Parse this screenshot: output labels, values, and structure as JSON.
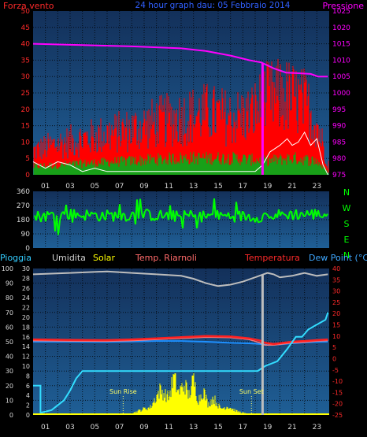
{
  "colors": {
    "background": "#000000",
    "panel_top": "#13305a",
    "panel_bottom": "#1f5f96",
    "grid": "#000000",
    "tick_white": "#d8d8d8",
    "wind_gust": "#ff0000",
    "wind_avg": "#18a018",
    "wind_white": "#ffffff",
    "pressure": "#ff00ff",
    "direction": "#00ff00",
    "humidity": "#bdbdbd",
    "solar": "#ffff00",
    "sun_marker": "#ffff66",
    "temperature": "#ff2020",
    "windchill": "#ff7777",
    "dewpoint": "#1e90ff",
    "rain": "#33ddff",
    "right_axis_red": "#ff2a2a",
    "left_axis_red": "#ff2a2a",
    "left_axis_blue": "#3fb6ff"
  },
  "chart_data": [
    {
      "type": "line",
      "title": "24 hour graph dau: 05 Febbraio 2014",
      "left_label": "Forza vento",
      "right_label": "Pressione",
      "y_left": {
        "min": 0,
        "max": 50,
        "ticks": [
          0,
          5,
          10,
          15,
          20,
          25,
          30,
          35,
          40,
          45,
          50
        ]
      },
      "y_right": {
        "min": 975,
        "max": 1025,
        "ticks": [
          975,
          980,
          985,
          990,
          995,
          1000,
          1005,
          1010,
          1015,
          1020,
          1025
        ]
      },
      "x_ticks": [
        "01",
        "03",
        "05",
        "07",
        "09",
        "11",
        "13",
        "15",
        "17",
        "19",
        "21",
        "23"
      ],
      "x_range_hours": [
        0,
        24
      ],
      "current_time_hour": 18.6,
      "series": [
        {
          "name": "Pressione",
          "axis": "right",
          "points": [
            [
              0,
              1015
            ],
            [
              4,
              1014.6
            ],
            [
              8,
              1014.2
            ],
            [
              12,
              1013.6
            ],
            [
              14,
              1012.8
            ],
            [
              16,
              1011.4
            ],
            [
              17.5,
              1010
            ],
            [
              18.5,
              1009.3
            ],
            [
              19.5,
              1007.5
            ],
            [
              20.5,
              1006.2
            ],
            [
              21.5,
              1006
            ],
            [
              22.5,
              1005.8
            ],
            [
              23.1,
              1005
            ],
            [
              23.9,
              1005
            ]
          ]
        },
        {
          "name": "gust-envelope",
          "points": [
            [
              0,
              10
            ],
            [
              2,
              13
            ],
            [
              4,
              15
            ],
            [
              6,
              17
            ],
            [
              8,
              19
            ],
            [
              10,
              22
            ],
            [
              12,
              24
            ],
            [
              14,
              26
            ],
            [
              16,
              24
            ],
            [
              17.5,
              25
            ],
            [
              19,
              32
            ],
            [
              20.5,
              33
            ],
            [
              22,
              30
            ],
            [
              23,
              22
            ],
            [
              23.9,
              5
            ]
          ]
        },
        {
          "name": "average-envelope",
          "points": [
            [
              0,
              3
            ],
            [
              4,
              4
            ],
            [
              8,
              5
            ],
            [
              12,
              6
            ],
            [
              16,
              6
            ],
            [
              19,
              5
            ],
            [
              21,
              6
            ],
            [
              23,
              5
            ],
            [
              23.9,
              1
            ]
          ]
        },
        {
          "name": "lull",
          "points": [
            [
              0,
              4
            ],
            [
              1,
              2
            ],
            [
              2,
              4
            ],
            [
              3,
              3
            ],
            [
              4,
              1
            ],
            [
              5,
              2
            ],
            [
              6,
              1
            ],
            [
              8,
              1
            ],
            [
              12,
              1
            ],
            [
              16,
              1
            ],
            [
              18,
              1
            ],
            [
              18.6,
              3
            ],
            [
              19.2,
              7
            ],
            [
              20,
              9
            ],
            [
              20.6,
              11
            ],
            [
              21,
              9
            ],
            [
              21.5,
              10
            ],
            [
              22,
              13
            ],
            [
              22.5,
              9
            ],
            [
              23,
              11
            ],
            [
              23.5,
              3
            ],
            [
              23.9,
              0
            ]
          ]
        }
      ]
    },
    {
      "type": "scatter",
      "y_left": {
        "min": 0,
        "max": 360,
        "ticks": [
          0,
          90,
          180,
          270,
          360
        ]
      },
      "y_right_labels": [
        "N",
        "W",
        "S",
        "E",
        "N"
      ],
      "x_range_hours": [
        0,
        24
      ],
      "series": [
        {
          "name": "direction-centre",
          "points": [
            [
              0,
              200
            ],
            [
              3,
              215
            ],
            [
              6,
              205
            ],
            [
              9,
              210
            ],
            [
              12,
              200
            ],
            [
              15,
              205
            ],
            [
              18,
              200
            ],
            [
              21,
              215
            ],
            [
              23.9,
              215
            ]
          ]
        }
      ]
    },
    {
      "type": "line",
      "legend": [
        "Pioggia",
        "Umidita",
        "Solar",
        "Temp. Riarnoli",
        "Temperatura",
        "Dew Point (°C)"
      ],
      "y_left_outer": {
        "min": 0,
        "max": 100,
        "ticks": [
          0,
          10,
          20,
          30,
          40,
          50,
          60,
          70,
          80,
          90,
          100
        ]
      },
      "y_left_inner": {
        "min": 0,
        "max": 30,
        "ticks": [
          0,
          2,
          4,
          6,
          8,
          10,
          12,
          14,
          16,
          18,
          20,
          22,
          24,
          26,
          28,
          30
        ]
      },
      "y_right": {
        "min": -25,
        "max": 40,
        "ticks": [
          -25,
          -20,
          -15,
          -10,
          -5,
          0,
          5,
          10,
          15,
          20,
          25,
          30,
          35,
          40
        ]
      },
      "x_ticks": [
        "01",
        "03",
        "05",
        "07",
        "09",
        "11",
        "13",
        "15",
        "17",
        "19",
        "21",
        "23"
      ],
      "x_range_hours": [
        0,
        24
      ],
      "current_time_hour": 18.6,
      "annotations": [
        {
          "label": "Sun Rise",
          "hour": 7.3
        },
        {
          "label": "Sun Set",
          "hour": 17.7
        }
      ],
      "series": [
        {
          "name": "Umidita",
          "axis": "left_outer",
          "points": [
            [
              0,
              96
            ],
            [
              3,
              97
            ],
            [
              6,
              98
            ],
            [
              8,
              97
            ],
            [
              10,
              96
            ],
            [
              12,
              95
            ],
            [
              13,
              93
            ],
            [
              14,
              90
            ],
            [
              15,
              88
            ],
            [
              16,
              89
            ],
            [
              17,
              91
            ],
            [
              18,
              94
            ],
            [
              19,
              97
            ],
            [
              19.5,
              96
            ],
            [
              20,
              94
            ],
            [
              21,
              95
            ],
            [
              22,
              97
            ],
            [
              23,
              95
            ],
            [
              23.9,
              96
            ]
          ]
        },
        {
          "name": "Temperatura",
          "axis": "right",
          "points": [
            [
              0,
              8.5
            ],
            [
              3,
              8.3
            ],
            [
              6,
              8.2
            ],
            [
              8,
              8.5
            ],
            [
              10,
              9
            ],
            [
              12,
              9.5
            ],
            [
              14,
              10
            ],
            [
              16,
              9.8
            ],
            [
              17.5,
              9
            ],
            [
              18.4,
              8
            ],
            [
              18.8,
              7
            ],
            [
              19.5,
              6.5
            ],
            [
              21,
              7.5
            ],
            [
              22,
              7.8
            ],
            [
              23,
              8.2
            ],
            [
              23.9,
              8.5
            ]
          ]
        },
        {
          "name": "Temp. Riarnoli",
          "axis": "right",
          "points": [
            [
              0,
              8
            ],
            [
              3,
              7.8
            ],
            [
              6,
              7.7
            ],
            [
              8,
              8
            ],
            [
              10,
              8.5
            ],
            [
              12,
              9
            ],
            [
              14,
              9.5
            ],
            [
              16,
              9.3
            ],
            [
              17.5,
              8.5
            ],
            [
              18.4,
              7
            ],
            [
              18.8,
              6
            ],
            [
              19.5,
              6
            ],
            [
              21,
              7
            ],
            [
              22,
              7.3
            ],
            [
              23,
              7.8
            ],
            [
              23.9,
              8
            ]
          ]
        },
        {
          "name": "Dew Point (°C)",
          "axis": "right",
          "points": [
            [
              0,
              7.5
            ],
            [
              3,
              7.5
            ],
            [
              6,
              7.4
            ],
            [
              8,
              7.6
            ],
            [
              10,
              7.8
            ],
            [
              12,
              7.8
            ],
            [
              14,
              7.5
            ],
            [
              16,
              7
            ],
            [
              17.5,
              6.8
            ],
            [
              18.4,
              6.5
            ],
            [
              19,
              6
            ],
            [
              20,
              6.3
            ],
            [
              21,
              6.8
            ],
            [
              22,
              7.2
            ],
            [
              23,
              7.4
            ],
            [
              23.9,
              7.5
            ]
          ]
        },
        {
          "name": "Pioggia",
          "axis": "left_inner",
          "points": [
            [
              0,
              6
            ],
            [
              0.6,
              6
            ],
            [
              0.7,
              0.5
            ],
            [
              1.5,
              1
            ],
            [
              2.5,
              3
            ],
            [
              3,
              5
            ],
            [
              3.5,
              7.5
            ],
            [
              4,
              9
            ],
            [
              18.2,
              9
            ],
            [
              18.8,
              10
            ],
            [
              19.8,
              11
            ],
            [
              20.6,
              13.5
            ],
            [
              21.3,
              16
            ],
            [
              21.8,
              16
            ],
            [
              22.3,
              17.5
            ],
            [
              23,
              18.5
            ],
            [
              23.7,
              19.5
            ],
            [
              23.9,
              21
            ]
          ]
        },
        {
          "name": "Solar",
          "axis": "left_outer",
          "points": [
            [
              0,
              0
            ],
            [
              7.3,
              0
            ],
            [
              8.2,
              2
            ],
            [
              9,
              5
            ],
            [
              9.5,
              6
            ],
            [
              10,
              15
            ],
            [
              10.3,
              20
            ],
            [
              11,
              14
            ],
            [
              11.4,
              30
            ],
            [
              11.8,
              18
            ],
            [
              12.3,
              25
            ],
            [
              12.6,
              15
            ],
            [
              13,
              28
            ],
            [
              13.4,
              12
            ],
            [
              13.8,
              20
            ],
            [
              14.2,
              8
            ],
            [
              14.6,
              14
            ],
            [
              15.2,
              5
            ],
            [
              15.8,
              7
            ],
            [
              16.5,
              3
            ],
            [
              17.3,
              1
            ],
            [
              17.7,
              0
            ],
            [
              23.9,
              0
            ]
          ]
        }
      ]
    }
  ]
}
